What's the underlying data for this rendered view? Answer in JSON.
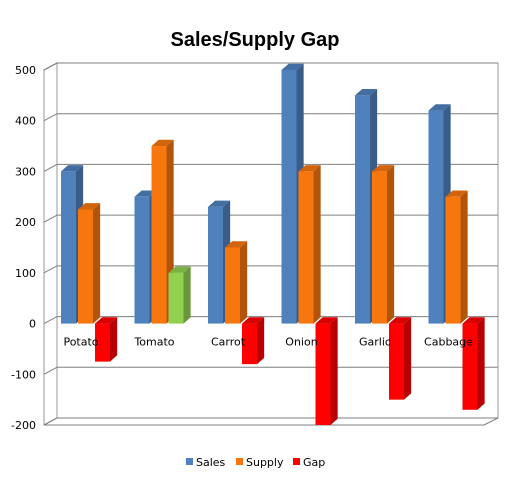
{
  "chart_data": {
    "type": "bar",
    "title": "Sales/Supply Gap",
    "categories": [
      "Potato",
      "Tomato",
      "Carrot",
      "Onion",
      "Garlic",
      "Cabbage"
    ],
    "series": [
      {
        "name": "Sales",
        "values": [
          300,
          250,
          230,
          500,
          450,
          420
        ],
        "color": "#4F81BD"
      },
      {
        "name": "Supply",
        "values": [
          225,
          350,
          150,
          300,
          300,
          250
        ],
        "color": "#F7760E"
      },
      {
        "name": "Gap",
        "values": [
          -75,
          100,
          -80,
          -200,
          -150,
          -170
        ],
        "color": "#FF0000",
        "positive_color": "#92D050"
      }
    ],
    "ylim": [
      -200,
      500
    ],
    "yticks": [
      "500",
      "400",
      "300",
      "200",
      "100",
      "0",
      "-100",
      "-200"
    ],
    "grid": true,
    "legend_position": "bottom"
  }
}
